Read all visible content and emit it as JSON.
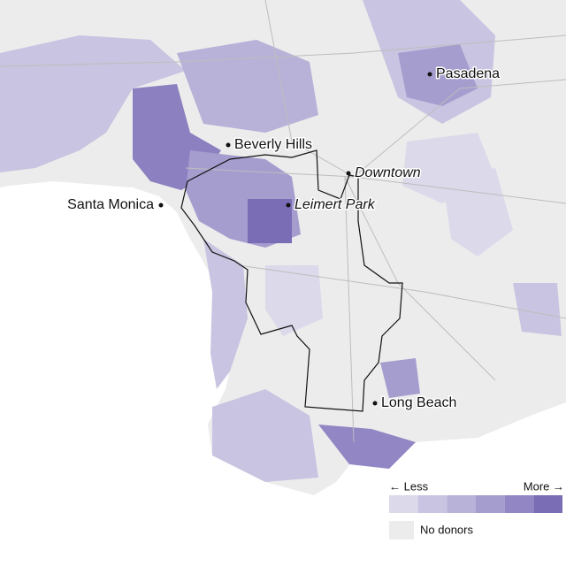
{
  "places": [
    {
      "name": "Pasadena",
      "italic": false
    },
    {
      "name": "Beverly Hills",
      "italic": false
    },
    {
      "name": "Downtown",
      "italic": true
    },
    {
      "name": "Santa Monica",
      "italic": false
    },
    {
      "name": "Leimert Park",
      "italic": true
    },
    {
      "name": "Long Beach",
      "italic": false
    }
  ],
  "legend": {
    "less": "← Less",
    "more": "More →",
    "colors": [
      "#dcd9ea",
      "#c9c4e1",
      "#b8b1d8",
      "#a69dcf",
      "#9286c4",
      "#7a6db5"
    ],
    "no_data_label": "No donors",
    "no_data_color": "#ececec"
  }
}
